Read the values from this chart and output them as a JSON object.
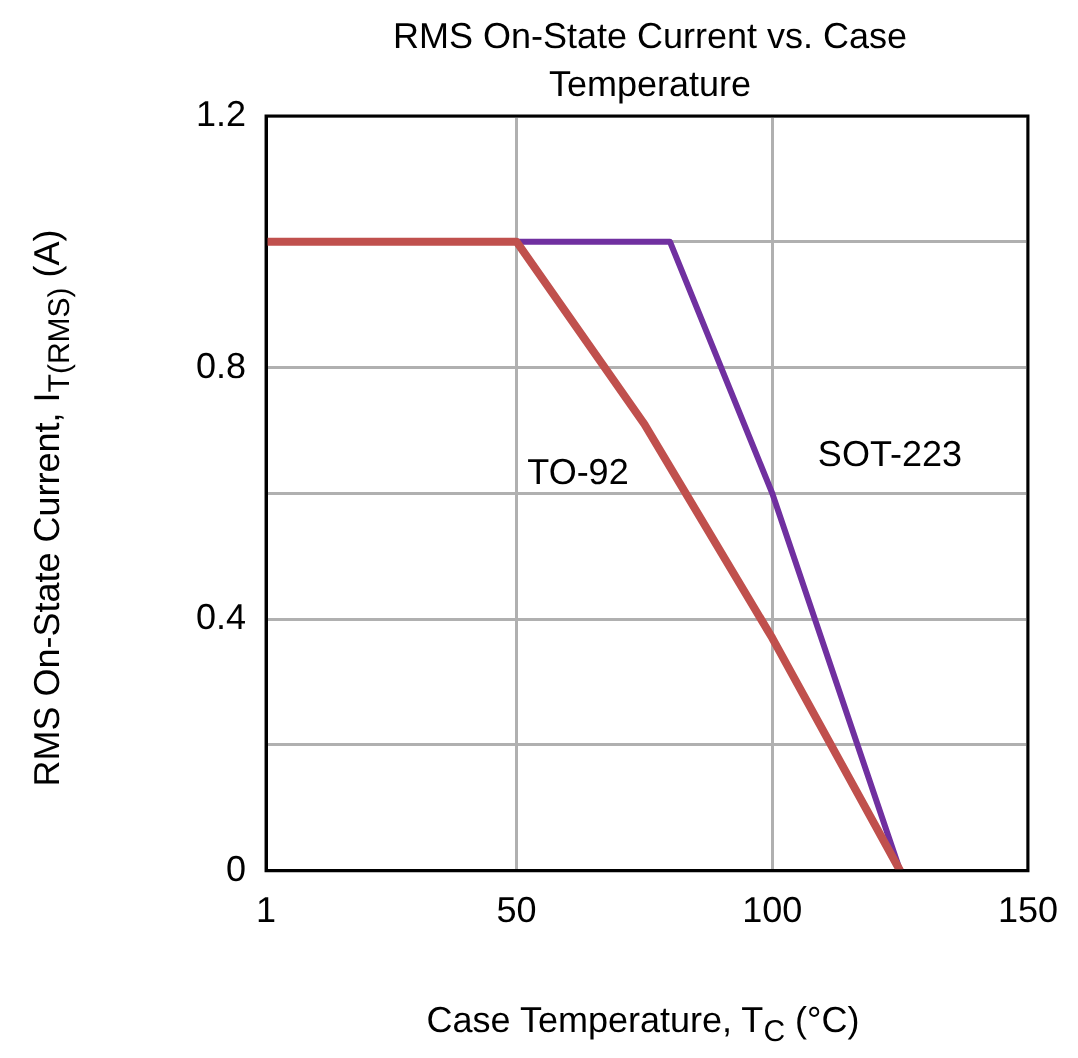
{
  "chart_data": {
    "type": "line",
    "title": "RMS On-State Current vs. Case Temperature",
    "xlabel": "Case Temperature, T$_{C}$ (°C)",
    "ylabel": "RMS On-State Current, I$_{T(RMS)}$ (A)",
    "xlim": [
      1,
      150
    ],
    "xticks": [
      1,
      50,
      100,
      150
    ],
    "ylim": [
      0,
      1.2
    ],
    "yticks": [
      0,
      {
        "value": 0.2,
        "label": null
      },
      0.4,
      {
        "value": 0.6,
        "label": null
      },
      0.8,
      {
        "value": 1.0,
        "label": null
      },
      1.2
    ],
    "grid": true,
    "legend": false,
    "marker": "none",
    "line_style": "solid",
    "series": [
      {
        "name": "TO-92",
        "color": "#c0504d",
        "x": [
          1,
          50,
          75,
          100,
          125
        ],
        "values": [
          1,
          1,
          0.71,
          0.37,
          0
        ]
      },
      {
        "name": "SOT-223",
        "color": "#7030a0",
        "x": [
          1,
          80,
          100,
          125
        ],
        "values": [
          1,
          1,
          0.6,
          0
        ]
      }
    ]
  }
}
